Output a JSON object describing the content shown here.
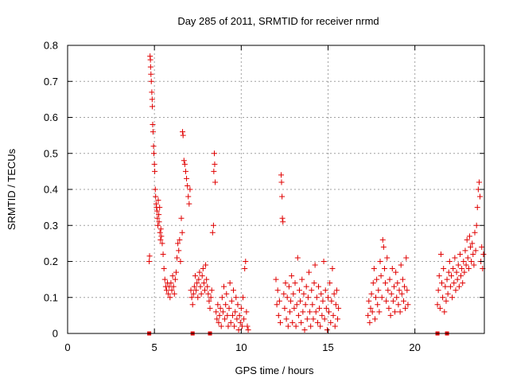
{
  "chart_data": {
    "type": "scatter",
    "title": "Day 285 of 2011, SRMTID for receiver nrmd",
    "xlabel": "GPS time / hours",
    "ylabel": "SRMTID / TECUs",
    "xlim": [
      0,
      24
    ],
    "ylim": [
      0,
      0.8
    ],
    "x_ticks": [
      0,
      5,
      10,
      15,
      20
    ],
    "x_tick_labels": [
      "0",
      "5",
      "10",
      "15",
      "20"
    ],
    "y_ticks": [
      0,
      0.1,
      0.2,
      0.3,
      0.4,
      0.5,
      0.6,
      0.7,
      0.8
    ],
    "y_tick_labels": [
      "0",
      "0.1",
      "0.2",
      "0.3",
      "0.4",
      "0.5",
      "0.6",
      "0.7",
      "0.8"
    ],
    "grid": true,
    "legend": "none",
    "marker": "plus",
    "color": "#e00000",
    "series": [
      {
        "values": [
          [
            4.7,
            0.2
          ],
          [
            4.72,
            0.215
          ],
          [
            4.75,
            0.77
          ],
          [
            4.77,
            0.76
          ],
          [
            4.78,
            0.74
          ],
          [
            4.8,
            0.72
          ],
          [
            4.82,
            0.7
          ],
          [
            4.85,
            0.67
          ],
          [
            4.87,
            0.65
          ],
          [
            4.88,
            0.63
          ],
          [
            4.9,
            0.58
          ],
          [
            4.92,
            0.56
          ],
          [
            4.95,
            0.52
          ],
          [
            4.97,
            0.5
          ],
          [
            5.0,
            0.47
          ],
          [
            5.02,
            0.45
          ],
          [
            5.05,
            0.4
          ],
          [
            5.07,
            0.38
          ],
          [
            5.1,
            0.36
          ],
          [
            5.12,
            0.35
          ],
          [
            5.15,
            0.34
          ],
          [
            5.17,
            0.32
          ],
          [
            5.2,
            0.3
          ],
          [
            5.22,
            0.37
          ],
          [
            5.25,
            0.33
          ],
          [
            5.27,
            0.31
          ],
          [
            5.3,
            0.35
          ],
          [
            5.32,
            0.28
          ],
          [
            5.35,
            0.26
          ],
          [
            5.37,
            0.29
          ],
          [
            5.4,
            0.27
          ],
          [
            5.45,
            0.25
          ],
          [
            5.5,
            0.22
          ],
          [
            5.55,
            0.18
          ],
          [
            5.6,
            0.15
          ],
          [
            5.65,
            0.13
          ],
          [
            5.7,
            0.12
          ],
          [
            5.75,
            0.14
          ],
          [
            5.8,
            0.11
          ],
          [
            5.85,
            0.13
          ],
          [
            5.9,
            0.1
          ],
          [
            5.95,
            0.14
          ],
          [
            6.0,
            0.12
          ],
          [
            6.05,
            0.16
          ],
          [
            6.1,
            0.13
          ],
          [
            6.15,
            0.11
          ],
          [
            6.2,
            0.15
          ],
          [
            6.25,
            0.17
          ],
          [
            6.3,
            0.21
          ],
          [
            6.35,
            0.25
          ],
          [
            6.4,
            0.23
          ],
          [
            6.45,
            0.26
          ],
          [
            6.5,
            0.2
          ],
          [
            6.55,
            0.32
          ],
          [
            6.6,
            0.28
          ],
          [
            6.62,
            0.56
          ],
          [
            6.65,
            0.55
          ],
          [
            6.7,
            0.48
          ],
          [
            6.75,
            0.47
          ],
          [
            6.8,
            0.45
          ],
          [
            6.85,
            0.43
          ],
          [
            6.9,
            0.41
          ],
          [
            6.95,
            0.38
          ],
          [
            7.0,
            0.36
          ],
          [
            7.05,
            0.4
          ],
          [
            7.1,
            0.12
          ],
          [
            7.15,
            0.1
          ],
          [
            7.2,
            0.08
          ],
          [
            7.25,
            0.11
          ],
          [
            7.3,
            0.13
          ],
          [
            7.35,
            0.16
          ],
          [
            7.4,
            0.12
          ],
          [
            7.45,
            0.14
          ],
          [
            7.5,
            0.1
          ],
          [
            7.55,
            0.15
          ],
          [
            7.6,
            0.17
          ],
          [
            7.65,
            0.13
          ],
          [
            7.7,
            0.11
          ],
          [
            7.75,
            0.16
          ],
          [
            7.8,
            0.18
          ],
          [
            7.85,
            0.14
          ],
          [
            7.9,
            0.12
          ],
          [
            7.95,
            0.19
          ],
          [
            8.0,
            0.15
          ],
          [
            8.05,
            0.13
          ],
          [
            8.1,
            0.11
          ],
          [
            8.15,
            0.09
          ],
          [
            8.2,
            0.07
          ],
          [
            8.25,
            0.1
          ],
          [
            8.3,
            0.12
          ],
          [
            8.35,
            0.28
          ],
          [
            8.4,
            0.3
          ],
          [
            8.42,
            0.45
          ],
          [
            8.45,
            0.5
          ],
          [
            8.47,
            0.47
          ],
          [
            8.5,
            0.42
          ],
          [
            8.55,
            0.06
          ],
          [
            8.6,
            0.04
          ],
          [
            8.65,
            0.08
          ],
          [
            8.7,
            0.03
          ],
          [
            8.75,
            0.05
          ],
          [
            8.8,
            0.07
          ],
          [
            8.85,
            0.02
          ],
          [
            8.9,
            0.1
          ],
          [
            8.95,
            0.06
          ],
          [
            9.0,
            0.13
          ],
          [
            9.05,
            0.04
          ],
          [
            9.1,
            0.08
          ],
          [
            9.15,
            0.11
          ],
          [
            9.2,
            0.05
          ],
          [
            9.25,
            0.02
          ],
          [
            9.3,
            0.07
          ],
          [
            9.35,
            0.14
          ],
          [
            9.4,
            0.03
          ],
          [
            9.45,
            0.09
          ],
          [
            9.5,
            0.05
          ],
          [
            9.55,
            0.12
          ],
          [
            9.6,
            0.02
          ],
          [
            9.65,
            0.06
          ],
          [
            9.7,
            0.1
          ],
          [
            9.75,
            0.04
          ],
          [
            9.8,
            0.08
          ],
          [
            9.85,
            0.01
          ],
          [
            9.9,
            0.05
          ],
          [
            9.95,
            0.03
          ],
          [
            10.0,
            0.07
          ],
          [
            10.05,
            0.02
          ],
          [
            10.1,
            0.1
          ],
          [
            10.15,
            0.04
          ],
          [
            10.2,
            0.18
          ],
          [
            10.25,
            0.2
          ],
          [
            10.3,
            0.06
          ],
          [
            10.35,
            0.02
          ],
          [
            10.4,
            0.01
          ],
          [
            12.0,
            0.15
          ],
          [
            12.05,
            0.08
          ],
          [
            12.1,
            0.12
          ],
          [
            12.15,
            0.05
          ],
          [
            12.2,
            0.09
          ],
          [
            12.25,
            0.03
          ],
          [
            12.3,
            0.44
          ],
          [
            12.32,
            0.42
          ],
          [
            12.35,
            0.38
          ],
          [
            12.37,
            0.32
          ],
          [
            12.4,
            0.31
          ],
          [
            12.45,
            0.11
          ],
          [
            12.5,
            0.07
          ],
          [
            12.55,
            0.14
          ],
          [
            12.6,
            0.04
          ],
          [
            12.65,
            0.1
          ],
          [
            12.7,
            0.02
          ],
          [
            12.75,
            0.13
          ],
          [
            12.8,
            0.06
          ],
          [
            12.85,
            0.09
          ],
          [
            12.9,
            0.16
          ],
          [
            12.95,
            0.03
          ],
          [
            13.0,
            0.11
          ],
          [
            13.05,
            0.07
          ],
          [
            13.1,
            0.14
          ],
          [
            13.15,
            0.02
          ],
          [
            13.2,
            0.08
          ],
          [
            13.25,
            0.21
          ],
          [
            13.3,
            0.05
          ],
          [
            13.35,
            0.12
          ],
          [
            13.4,
            0.09
          ],
          [
            13.45,
            0.03
          ],
          [
            13.5,
            0.15
          ],
          [
            13.55,
            0.06
          ],
          [
            13.6,
            0.11
          ],
          [
            13.65,
            0.01
          ],
          [
            13.7,
            0.08
          ],
          [
            13.75,
            0.13
          ],
          [
            13.8,
            0.04
          ],
          [
            13.85,
            0.1
          ],
          [
            13.9,
            0.17
          ],
          [
            13.95,
            0.06
          ],
          [
            14.0,
            0.02
          ],
          [
            14.05,
            0.12
          ],
          [
            14.1,
            0.08
          ],
          [
            14.15,
            0.04
          ],
          [
            14.2,
            0.14
          ],
          [
            14.25,
            0.19
          ],
          [
            14.3,
            0.06
          ],
          [
            14.35,
            0.1
          ],
          [
            14.4,
            0.03
          ],
          [
            14.45,
            0.13
          ],
          [
            14.5,
            0.07
          ],
          [
            14.55,
            0.02
          ],
          [
            14.6,
            0.11
          ],
          [
            14.65,
            0.05
          ],
          [
            14.7,
            0.09
          ],
          [
            14.75,
            0.2
          ],
          [
            14.8,
            0.04
          ],
          [
            14.85,
            0.12
          ],
          [
            14.9,
            0.07
          ],
          [
            14.95,
            0.01
          ],
          [
            15.0,
            0.1
          ],
          [
            15.05,
            0.06
          ],
          [
            15.1,
            0.14
          ],
          [
            15.15,
            0.03
          ],
          [
            15.2,
            0.09
          ],
          [
            15.25,
            0.18
          ],
          [
            15.3,
            0.05
          ],
          [
            15.35,
            0.11
          ],
          [
            15.4,
            0.02
          ],
          [
            15.45,
            0.08
          ],
          [
            15.5,
            0.12
          ],
          [
            15.55,
            0.04
          ],
          [
            15.6,
            0.07
          ],
          [
            17.3,
            0.05
          ],
          [
            17.35,
            0.09
          ],
          [
            17.4,
            0.03
          ],
          [
            17.45,
            0.07
          ],
          [
            17.5,
            0.11
          ],
          [
            17.55,
            0.06
          ],
          [
            17.6,
            0.14
          ],
          [
            17.65,
            0.18
          ],
          [
            17.7,
            0.04
          ],
          [
            17.75,
            0.1
          ],
          [
            17.8,
            0.15
          ],
          [
            17.85,
            0.08
          ],
          [
            17.9,
            0.12
          ],
          [
            17.95,
            0.06
          ],
          [
            18.0,
            0.2
          ],
          [
            18.05,
            0.16
          ],
          [
            18.1,
            0.1
          ],
          [
            18.15,
            0.26
          ],
          [
            18.2,
            0.24
          ],
          [
            18.25,
            0.18
          ],
          [
            18.3,
            0.14
          ],
          [
            18.35,
            0.09
          ],
          [
            18.4,
            0.21
          ],
          [
            18.45,
            0.12
          ],
          [
            18.5,
            0.07
          ],
          [
            18.55,
            0.15
          ],
          [
            18.6,
            0.05
          ],
          [
            18.65,
            0.11
          ],
          [
            18.7,
            0.18
          ],
          [
            18.75,
            0.09
          ],
          [
            18.8,
            0.13
          ],
          [
            18.85,
            0.06
          ],
          [
            18.9,
            0.17
          ],
          [
            18.95,
            0.1
          ],
          [
            19.0,
            0.14
          ],
          [
            19.05,
            0.08
          ],
          [
            19.1,
            0.12
          ],
          [
            19.15,
            0.06
          ],
          [
            19.2,
            0.19
          ],
          [
            19.25,
            0.11
          ],
          [
            19.3,
            0.15
          ],
          [
            19.35,
            0.09
          ],
          [
            19.4,
            0.13
          ],
          [
            19.45,
            0.07
          ],
          [
            19.5,
            0.21
          ],
          [
            19.55,
            0.12
          ],
          [
            19.6,
            0.08
          ],
          [
            21.3,
            0.08
          ],
          [
            21.35,
            0.12
          ],
          [
            21.4,
            0.16
          ],
          [
            21.45,
            0.07
          ],
          [
            21.5,
            0.22
          ],
          [
            21.55,
            0.14
          ],
          [
            21.6,
            0.1
          ],
          [
            21.65,
            0.18
          ],
          [
            21.7,
            0.06
          ],
          [
            21.75,
            0.13
          ],
          [
            21.8,
            0.09
          ],
          [
            21.85,
            0.15
          ],
          [
            21.9,
            0.11
          ],
          [
            21.95,
            0.17
          ],
          [
            22.0,
            0.2
          ],
          [
            22.05,
            0.13
          ],
          [
            22.1,
            0.16
          ],
          [
            22.15,
            0.1
          ],
          [
            22.2,
            0.18
          ],
          [
            22.25,
            0.14
          ],
          [
            22.3,
            0.21
          ],
          [
            22.35,
            0.12
          ],
          [
            22.4,
            0.17
          ],
          [
            22.45,
            0.15
          ],
          [
            22.5,
            0.19
          ],
          [
            22.55,
            0.13
          ],
          [
            22.6,
            0.22
          ],
          [
            22.65,
            0.16
          ],
          [
            22.7,
            0.18
          ],
          [
            22.75,
            0.14
          ],
          [
            22.8,
            0.2
          ],
          [
            22.85,
            0.17
          ],
          [
            22.9,
            0.23
          ],
          [
            22.95,
            0.19
          ],
          [
            23.0,
            0.26
          ],
          [
            23.05,
            0.21
          ],
          [
            23.1,
            0.18
          ],
          [
            23.15,
            0.27
          ],
          [
            23.2,
            0.24
          ],
          [
            23.25,
            0.2
          ],
          [
            23.3,
            0.25
          ],
          [
            23.35,
            0.22
          ],
          [
            23.4,
            0.19
          ],
          [
            23.45,
            0.28
          ],
          [
            23.5,
            0.23
          ],
          [
            23.55,
            0.3
          ],
          [
            23.6,
            0.35
          ],
          [
            23.65,
            0.4
          ],
          [
            23.7,
            0.42
          ],
          [
            23.75,
            0.38
          ],
          [
            23.8,
            0.2
          ],
          [
            23.85,
            0.24
          ],
          [
            23.9,
            0.18
          ],
          [
            23.95,
            0.22
          ]
        ]
      }
    ],
    "baseline_markers_x": [
      4.7,
      7.2,
      8.2,
      21.3,
      21.85
    ]
  }
}
